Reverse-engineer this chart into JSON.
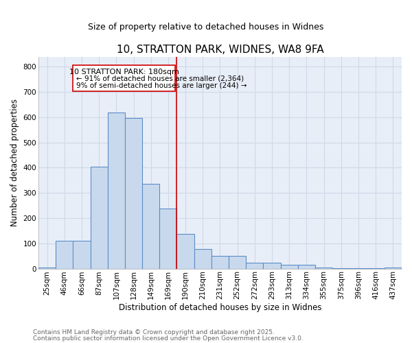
{
  "title1": "10, STRATTON PARK, WIDNES, WA8 9FA",
  "title2": "Size of property relative to detached houses in Widnes",
  "xlabel": "Distribution of detached houses by size in Widnes",
  "ylabel": "Number of detached properties",
  "bar_labels": [
    "25sqm",
    "46sqm",
    "66sqm",
    "87sqm",
    "107sqm",
    "128sqm",
    "149sqm",
    "169sqm",
    "190sqm",
    "210sqm",
    "231sqm",
    "252sqm",
    "272sqm",
    "293sqm",
    "313sqm",
    "334sqm",
    "355sqm",
    "375sqm",
    "396sqm",
    "416sqm",
    "437sqm"
  ],
  "bar_heights": [
    5,
    110,
    110,
    403,
    618,
    597,
    337,
    237,
    137,
    78,
    50,
    50,
    24,
    24,
    16,
    16,
    5,
    2,
    2,
    2,
    5
  ],
  "bar_color": "#c9d9ed",
  "bar_edge_color": "#5b8dc8",
  "plot_bg_color": "#e8eef7",
  "fig_bg_color": "#ffffff",
  "grid_color": "#d0d8e8",
  "vline_color": "#cc0000",
  "vline_x_idx": 8,
  "annotation_title": "10 STRATTON PARK: 180sqm",
  "annotation_line1": "← 91% of detached houses are smaller (2,364)",
  "annotation_line2": "9% of semi-detached houses are larger (244) →",
  "annotation_box_color": "#cc0000",
  "footer1": "Contains HM Land Registry data © Crown copyright and database right 2025.",
  "footer2": "Contains public sector information licensed under the Open Government Licence v3.0.",
  "ylim": [
    0,
    840
  ],
  "yticks": [
    0,
    100,
    200,
    300,
    400,
    500,
    600,
    700,
    800
  ],
  "title1_fontsize": 11,
  "title2_fontsize": 9,
  "axis_label_fontsize": 8.5,
  "tick_fontsize": 7.5,
  "footer_fontsize": 6.5
}
